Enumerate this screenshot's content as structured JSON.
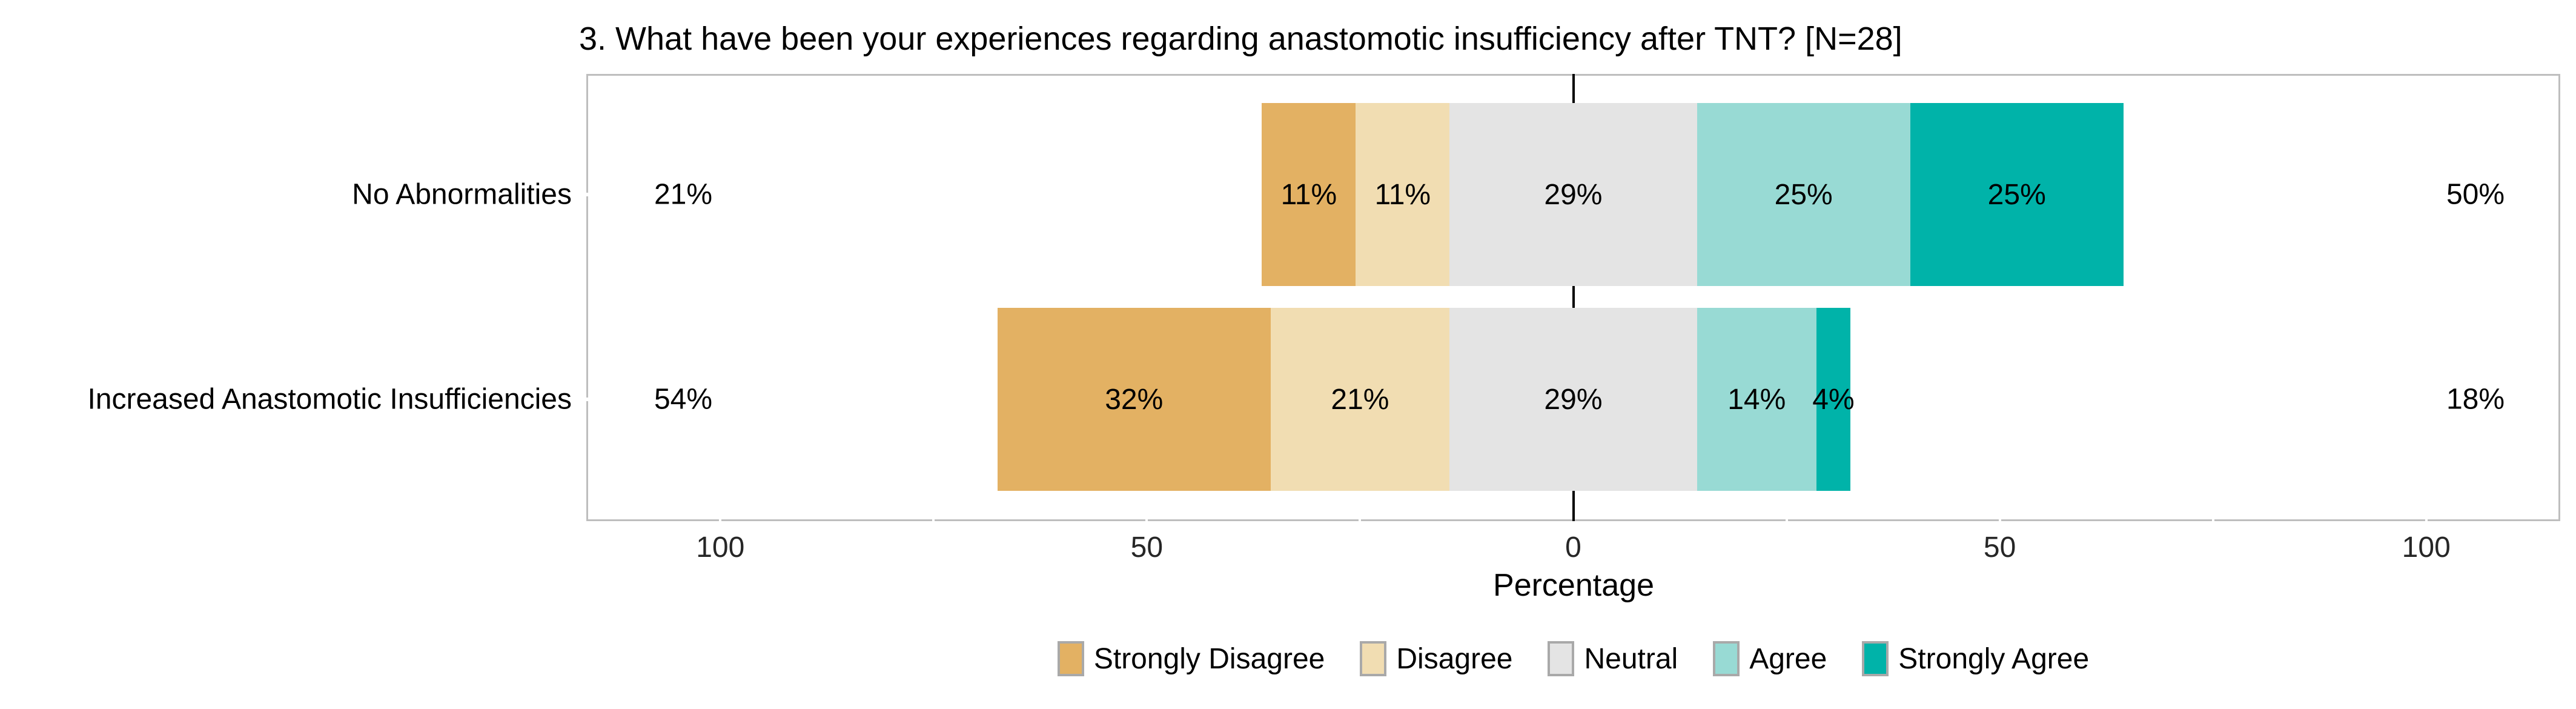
{
  "chart_data": {
    "type": "bar",
    "variant": "diverging-stacked-likert",
    "orientation": "horizontal",
    "title": "3. What have been your experiences regarding anastomotic insufficiency after TNT? [N=28]",
    "xlabel": "Percentage",
    "categories": [
      "No Abnormalities",
      "Increased Anastomotic Insufficiencies"
    ],
    "series": [
      {
        "name": "Strongly Disagree",
        "color": "#E3B163",
        "values": [
          11,
          32
        ]
      },
      {
        "name": "Disagree",
        "color": "#F1DDB2",
        "values": [
          11,
          21
        ]
      },
      {
        "name": "Neutral",
        "color": "#E4E4E4",
        "values": [
          29,
          29
        ]
      },
      {
        "name": "Agree",
        "color": "#98DAD4",
        "values": [
          25,
          14
        ]
      },
      {
        "name": "Strongly Agree",
        "color": "#00B3A9",
        "values": [
          25,
          4
        ]
      }
    ],
    "segment_labels": [
      [
        "11%",
        "11%",
        "29%",
        "25%",
        "25%"
      ],
      [
        "32%",
        "21%",
        "29%",
        "14%",
        "4%"
      ]
    ],
    "totals_left": [
      "21%",
      "54%"
    ],
    "totals_right": [
      "50%",
      "18%"
    ],
    "axis": {
      "tick_values": [
        -100,
        -50,
        0,
        50,
        100
      ],
      "tick_labels": [
        "100",
        "50",
        "0",
        "50",
        "100"
      ],
      "xlim": [
        -115.5,
        115.5
      ],
      "minor_notch_values": [
        -100,
        -75,
        -50,
        -25,
        25,
        50,
        75,
        100
      ]
    },
    "legend_position": "bottom",
    "grid": "off",
    "panel_border_color": "#BEBEBE",
    "zero_line_color": "#000000"
  }
}
